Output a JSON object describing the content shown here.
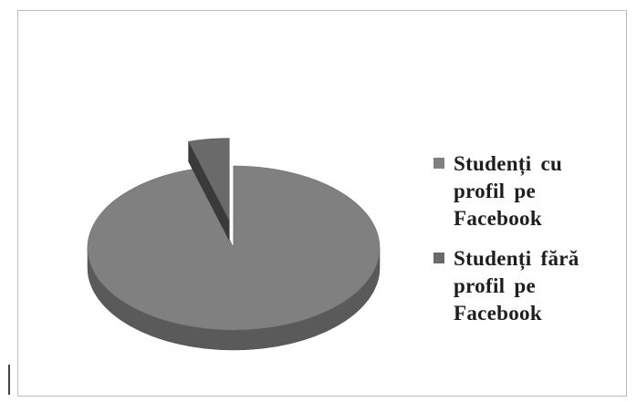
{
  "chart_data": {
    "type": "pie",
    "style": "3d-exploded",
    "slices": [
      {
        "label": "Studenți cu profil pe Facebook",
        "value": 95.5,
        "color": "#808080"
      },
      {
        "label": "Studenți fără profil pe Facebook",
        "value": 4.5,
        "color": "#6a6a6a"
      }
    ],
    "legend_position": "right"
  },
  "legend": {
    "items": [
      {
        "lines": [
          "Studenți cu",
          "profil pe",
          "Facebook"
        ],
        "color": "#808080"
      },
      {
        "lines": [
          "Studenți fără",
          "profil pe",
          "Facebook"
        ],
        "color": "#6a6a6a"
      }
    ]
  }
}
